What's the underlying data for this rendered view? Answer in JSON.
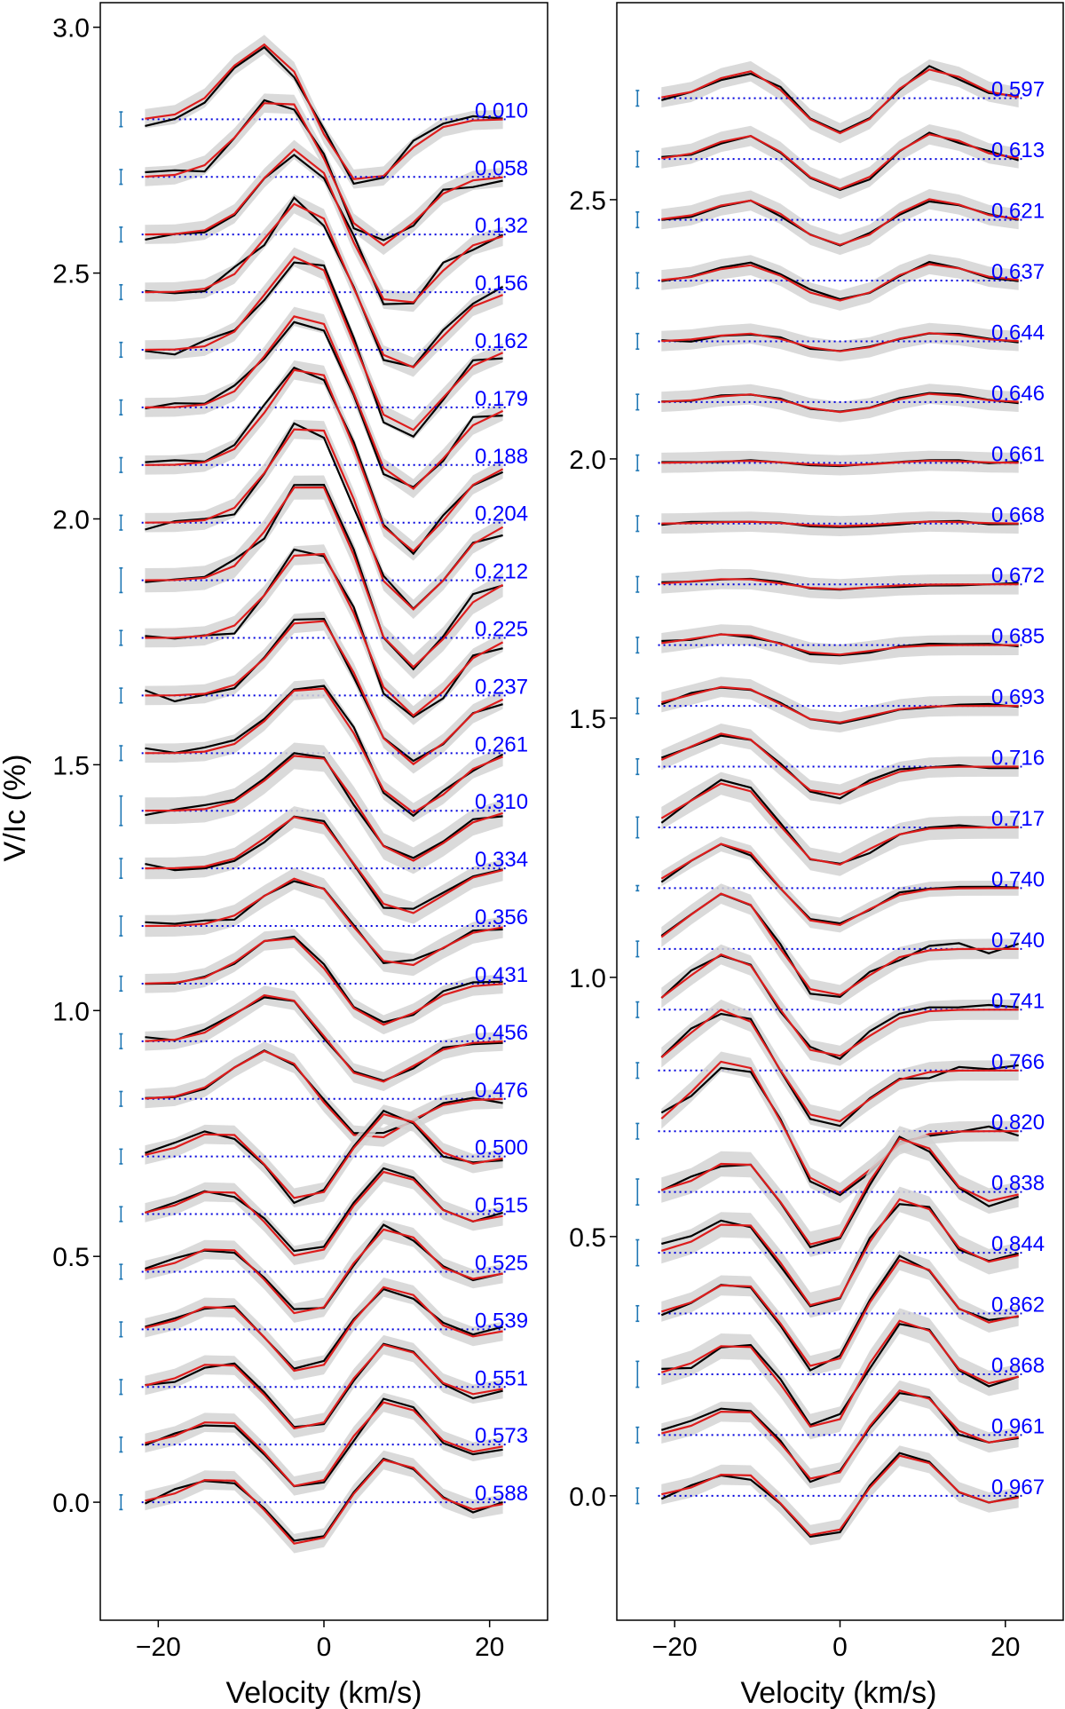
{
  "chart_data": [
    {
      "type": "line",
      "panel": "left",
      "xlabel": "Velocity (km/s)",
      "ylabel": "V/Ic (%)",
      "xlim": [
        -27,
        27
      ],
      "ylim": [
        -0.24,
        3.05
      ],
      "xticks": [
        -20,
        0,
        20
      ],
      "xtick_labels": [
        "−20",
        "0",
        "20"
      ],
      "yticks": [
        0.0,
        0.5,
        1.0,
        1.5,
        2.0,
        2.5,
        3.0
      ],
      "ytick_labels": [
        "0.0",
        "0.5",
        "1.0",
        "1.5",
        "2.0",
        "2.5",
        "3.0"
      ],
      "velocity_grid": [
        -21.6,
        -18,
        -14.4,
        -10.8,
        -7.2,
        -3.6,
        0,
        3.6,
        7.2,
        10.8,
        14.4,
        18,
        21.6
      ],
      "offset_step": 0.1172,
      "series": [
        {
          "phase": "0.010",
          "error": 0.03,
          "amp": 0.14,
          "shape": "shift",
          "phase_value": 0.01
        },
        {
          "phase": "0.058",
          "error": 0.03,
          "amp": 0.15,
          "shape": "shift",
          "phase_value": 0.058
        },
        {
          "phase": "0.132",
          "error": 0.03,
          "amp": 0.16,
          "shape": "shift",
          "phase_value": 0.132
        },
        {
          "phase": "0.156",
          "error": 0.03,
          "amp": 0.17,
          "shape": "shift",
          "phase_value": 0.156
        },
        {
          "phase": "0.162",
          "error": 0.03,
          "amp": 0.18,
          "shape": "shift",
          "phase_value": 0.162
        },
        {
          "phase": "0.179",
          "error": 0.03,
          "amp": 0.18,
          "shape": "shift",
          "phase_value": 0.179
        },
        {
          "phase": "0.188",
          "error": 0.03,
          "amp": 0.19,
          "shape": "shift",
          "phase_value": 0.188
        },
        {
          "phase": "0.204",
          "error": 0.03,
          "amp": 0.19,
          "shape": "shift",
          "phase_value": 0.204
        },
        {
          "phase": "0.212",
          "error": 0.05,
          "amp": 0.19,
          "shape": "shift",
          "phase_value": 0.212
        },
        {
          "phase": "0.225",
          "error": 0.03,
          "amp": 0.17,
          "shape": "shift",
          "phase_value": 0.225
        },
        {
          "phase": "0.237",
          "error": 0.03,
          "amp": 0.15,
          "shape": "shift",
          "phase_value": 0.237
        },
        {
          "phase": "0.261",
          "error": 0.03,
          "amp": 0.13,
          "shape": "shift",
          "phase_value": 0.261
        },
        {
          "phase": "0.310",
          "error": 0.06,
          "amp": 0.11,
          "shape": "shift",
          "phase_value": 0.31
        },
        {
          "phase": "0.334",
          "error": 0.04,
          "amp": 0.1,
          "shape": "shift",
          "phase_value": 0.334
        },
        {
          "phase": "0.356",
          "error": 0.04,
          "amp": 0.09,
          "shape": "shift",
          "phase_value": 0.356
        },
        {
          "phase": "0.431",
          "error": 0.03,
          "amp": 0.09,
          "shape": "shift",
          "phase_value": 0.431
        },
        {
          "phase": "0.456",
          "error": 0.03,
          "amp": 0.09,
          "shape": "shift",
          "phase_value": 0.456
        },
        {
          "phase": "0.476",
          "error": 0.03,
          "amp": 0.09,
          "shape": "shift",
          "phase_value": 0.476
        },
        {
          "phase": "0.500",
          "error": 0.03,
          "amp": 0.1,
          "shape": "wave",
          "phase_value": 0.5
        },
        {
          "phase": "0.515",
          "error": 0.03,
          "amp": 0.1,
          "shape": "wave",
          "phase_value": 0.515
        },
        {
          "phase": "0.525",
          "error": 0.03,
          "amp": 0.1,
          "shape": "wave",
          "phase_value": 0.525
        },
        {
          "phase": "0.539",
          "error": 0.03,
          "amp": 0.1,
          "shape": "wave",
          "phase_value": 0.539
        },
        {
          "phase": "0.551",
          "error": 0.03,
          "amp": 0.1,
          "shape": "wave",
          "phase_value": 0.551
        },
        {
          "phase": "0.573",
          "error": 0.03,
          "amp": 0.1,
          "shape": "wave",
          "phase_value": 0.573
        },
        {
          "phase": "0.588",
          "error": 0.03,
          "amp": 0.1,
          "shape": "wave",
          "phase_value": 0.588
        }
      ]
    },
    {
      "type": "line",
      "panel": "right",
      "xlabel": "Velocity (km/s)",
      "ylabel": "",
      "xlim": [
        -27,
        27
      ],
      "ylim": [
        -0.24,
        2.88
      ],
      "xticks": [
        -20,
        0,
        20
      ],
      "xtick_labels": [
        "−20",
        "0",
        "20"
      ],
      "yticks": [
        0.0,
        0.5,
        1.0,
        1.5,
        2.0,
        2.5
      ],
      "ytick_labels": [
        "0.0",
        "0.5",
        "1.0",
        "1.5",
        "2.0",
        "2.5"
      ],
      "velocity_grid": [
        -21.6,
        -18,
        -14.4,
        -10.8,
        -7.2,
        -3.6,
        0,
        3.6,
        7.2,
        10.8,
        14.4,
        18,
        21.6
      ],
      "offset_step": 0.1172,
      "series": [
        {
          "phase": "0.597",
          "error": 0.03,
          "amp": 0.07,
          "shape": "sym",
          "phase_value": 0.597
        },
        {
          "phase": "0.613",
          "error": 0.03,
          "amp": 0.06,
          "shape": "sym",
          "phase_value": 0.613
        },
        {
          "phase": "0.621",
          "error": 0.03,
          "amp": 0.05,
          "shape": "sym",
          "phase_value": 0.621
        },
        {
          "phase": "0.637",
          "error": 0.03,
          "amp": 0.04,
          "shape": "sym",
          "phase_value": 0.637
        },
        {
          "phase": "0.644",
          "error": 0.03,
          "amp": 0.02,
          "shape": "sym",
          "phase_value": 0.644
        },
        {
          "phase": "0.646",
          "error": 0.03,
          "amp": 0.02,
          "shape": "sym",
          "phase_value": 0.646
        },
        {
          "phase": "0.661",
          "error": 0.03,
          "amp": 0.005,
          "shape": "sym",
          "phase_value": 0.661
        },
        {
          "phase": "0.668",
          "error": 0.03,
          "amp": 0.005,
          "shape": "sym",
          "phase_value": 0.668
        },
        {
          "phase": "0.672",
          "error": 0.03,
          "amp": 0.01,
          "shape": "shift",
          "phase_value": 0.672
        },
        {
          "phase": "0.685",
          "error": 0.03,
          "amp": 0.02,
          "shape": "shift",
          "phase_value": 0.685
        },
        {
          "phase": "0.693",
          "error": 0.03,
          "amp": 0.035,
          "shape": "shift",
          "phase_value": 0.693
        },
        {
          "phase": "0.716",
          "error": 0.03,
          "amp": 0.06,
          "shape": "shift",
          "phase_value": 0.716
        },
        {
          "phase": "0.717",
          "error": 0.04,
          "amp": 0.08,
          "shape": "shift",
          "phase_value": 0.717
        },
        {
          "phase": "0.740",
          "error": 0.01,
          "amp": 0.08,
          "shape": "shift",
          "phase_value": 0.74
        },
        {
          "phase": "0.740",
          "error": 0.03,
          "amp": 0.1,
          "shape": "shift",
          "phase_value": 0.74
        },
        {
          "phase": "0.741",
          "error": 0.03,
          "amp": 0.1,
          "shape": "shift",
          "phase_value": 0.741
        },
        {
          "phase": "0.766",
          "error": 0.03,
          "amp": 0.11,
          "shape": "shift",
          "phase_value": 0.766
        },
        {
          "phase": "0.820",
          "error": 0.03,
          "amp": 0.13,
          "shape": "shift",
          "phase_value": 0.82
        },
        {
          "phase": "0.838",
          "error": 0.05,
          "amp": 0.12,
          "shape": "wave",
          "phase_value": 0.838
        },
        {
          "phase": "0.844",
          "error": 0.05,
          "amp": 0.12,
          "shape": "wave",
          "phase_value": 0.844
        },
        {
          "phase": "0.862",
          "error": 0.03,
          "amp": 0.12,
          "shape": "wave",
          "phase_value": 0.862
        },
        {
          "phase": "0.868",
          "error": 0.05,
          "amp": 0.12,
          "shape": "wave",
          "phase_value": 0.868
        },
        {
          "phase": "0.961",
          "error": 0.03,
          "amp": 0.1,
          "shape": "wave",
          "phase_value": 0.961
        },
        {
          "phase": "0.967",
          "error": 0.03,
          "amp": 0.09,
          "shape": "wave",
          "phase_value": 0.967
        }
      ]
    }
  ]
}
